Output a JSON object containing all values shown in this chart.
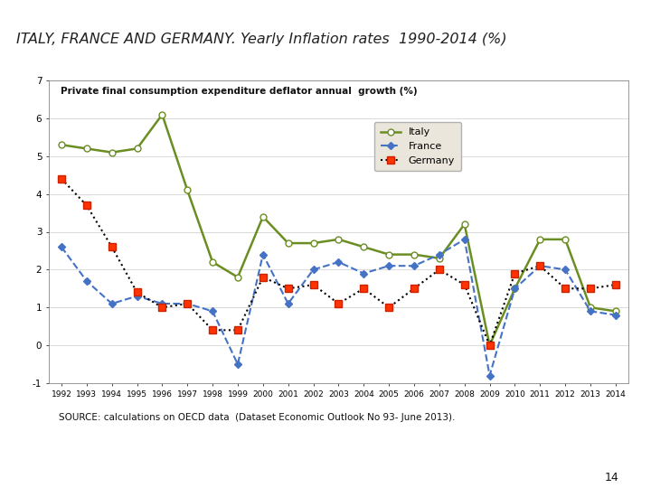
{
  "title": "ITALY, FRANCE AND GERMANY. Yearly Inflation rates  1990-2014 (%)",
  "chart_title": "Private final consumption expenditure deflator annual  growth (%)",
  "source": "SOURCE: calculations on OECD data  (Dataset Economic Outlook No 93- June 2013).",
  "page_number": "14",
  "years": [
    1992,
    1993,
    1994,
    1995,
    1996,
    1997,
    1998,
    1999,
    2000,
    2001,
    2002,
    2003,
    2004,
    2005,
    2006,
    2007,
    2008,
    2009,
    2010,
    2011,
    2012,
    2013,
    2014
  ],
  "italy": [
    5.3,
    5.2,
    5.1,
    5.2,
    6.1,
    4.1,
    2.2,
    1.8,
    3.4,
    2.7,
    2.7,
    2.8,
    2.6,
    2.4,
    2.4,
    2.3,
    3.2,
    0.0,
    1.5,
    2.8,
    2.8,
    1.0,
    0.9
  ],
  "france": [
    2.6,
    1.7,
    1.1,
    1.3,
    1.1,
    1.1,
    0.9,
    -0.5,
    2.4,
    1.1,
    2.0,
    2.2,
    1.9,
    2.1,
    2.1,
    2.4,
    2.8,
    -0.8,
    1.5,
    2.1,
    2.0,
    0.9,
    0.8
  ],
  "germany": [
    4.4,
    3.7,
    2.6,
    1.4,
    1.0,
    1.1,
    0.4,
    0.4,
    1.8,
    1.5,
    1.6,
    1.1,
    1.5,
    1.0,
    1.5,
    2.0,
    1.6,
    0.0,
    1.9,
    2.1,
    1.5,
    1.5,
    1.6
  ],
  "italy_color": "#6b8e23",
  "france_color": "#4472c4",
  "germany_color": "#000000",
  "ylim": [
    -1,
    7
  ],
  "yticks": [
    -1,
    0,
    1,
    2,
    3,
    4,
    5,
    6,
    7
  ],
  "title_bg": "#dce6f1",
  "chart_bg": "#ffffff",
  "outer_bg": "#ffffff",
  "legend_bg": "#e8e4d8"
}
